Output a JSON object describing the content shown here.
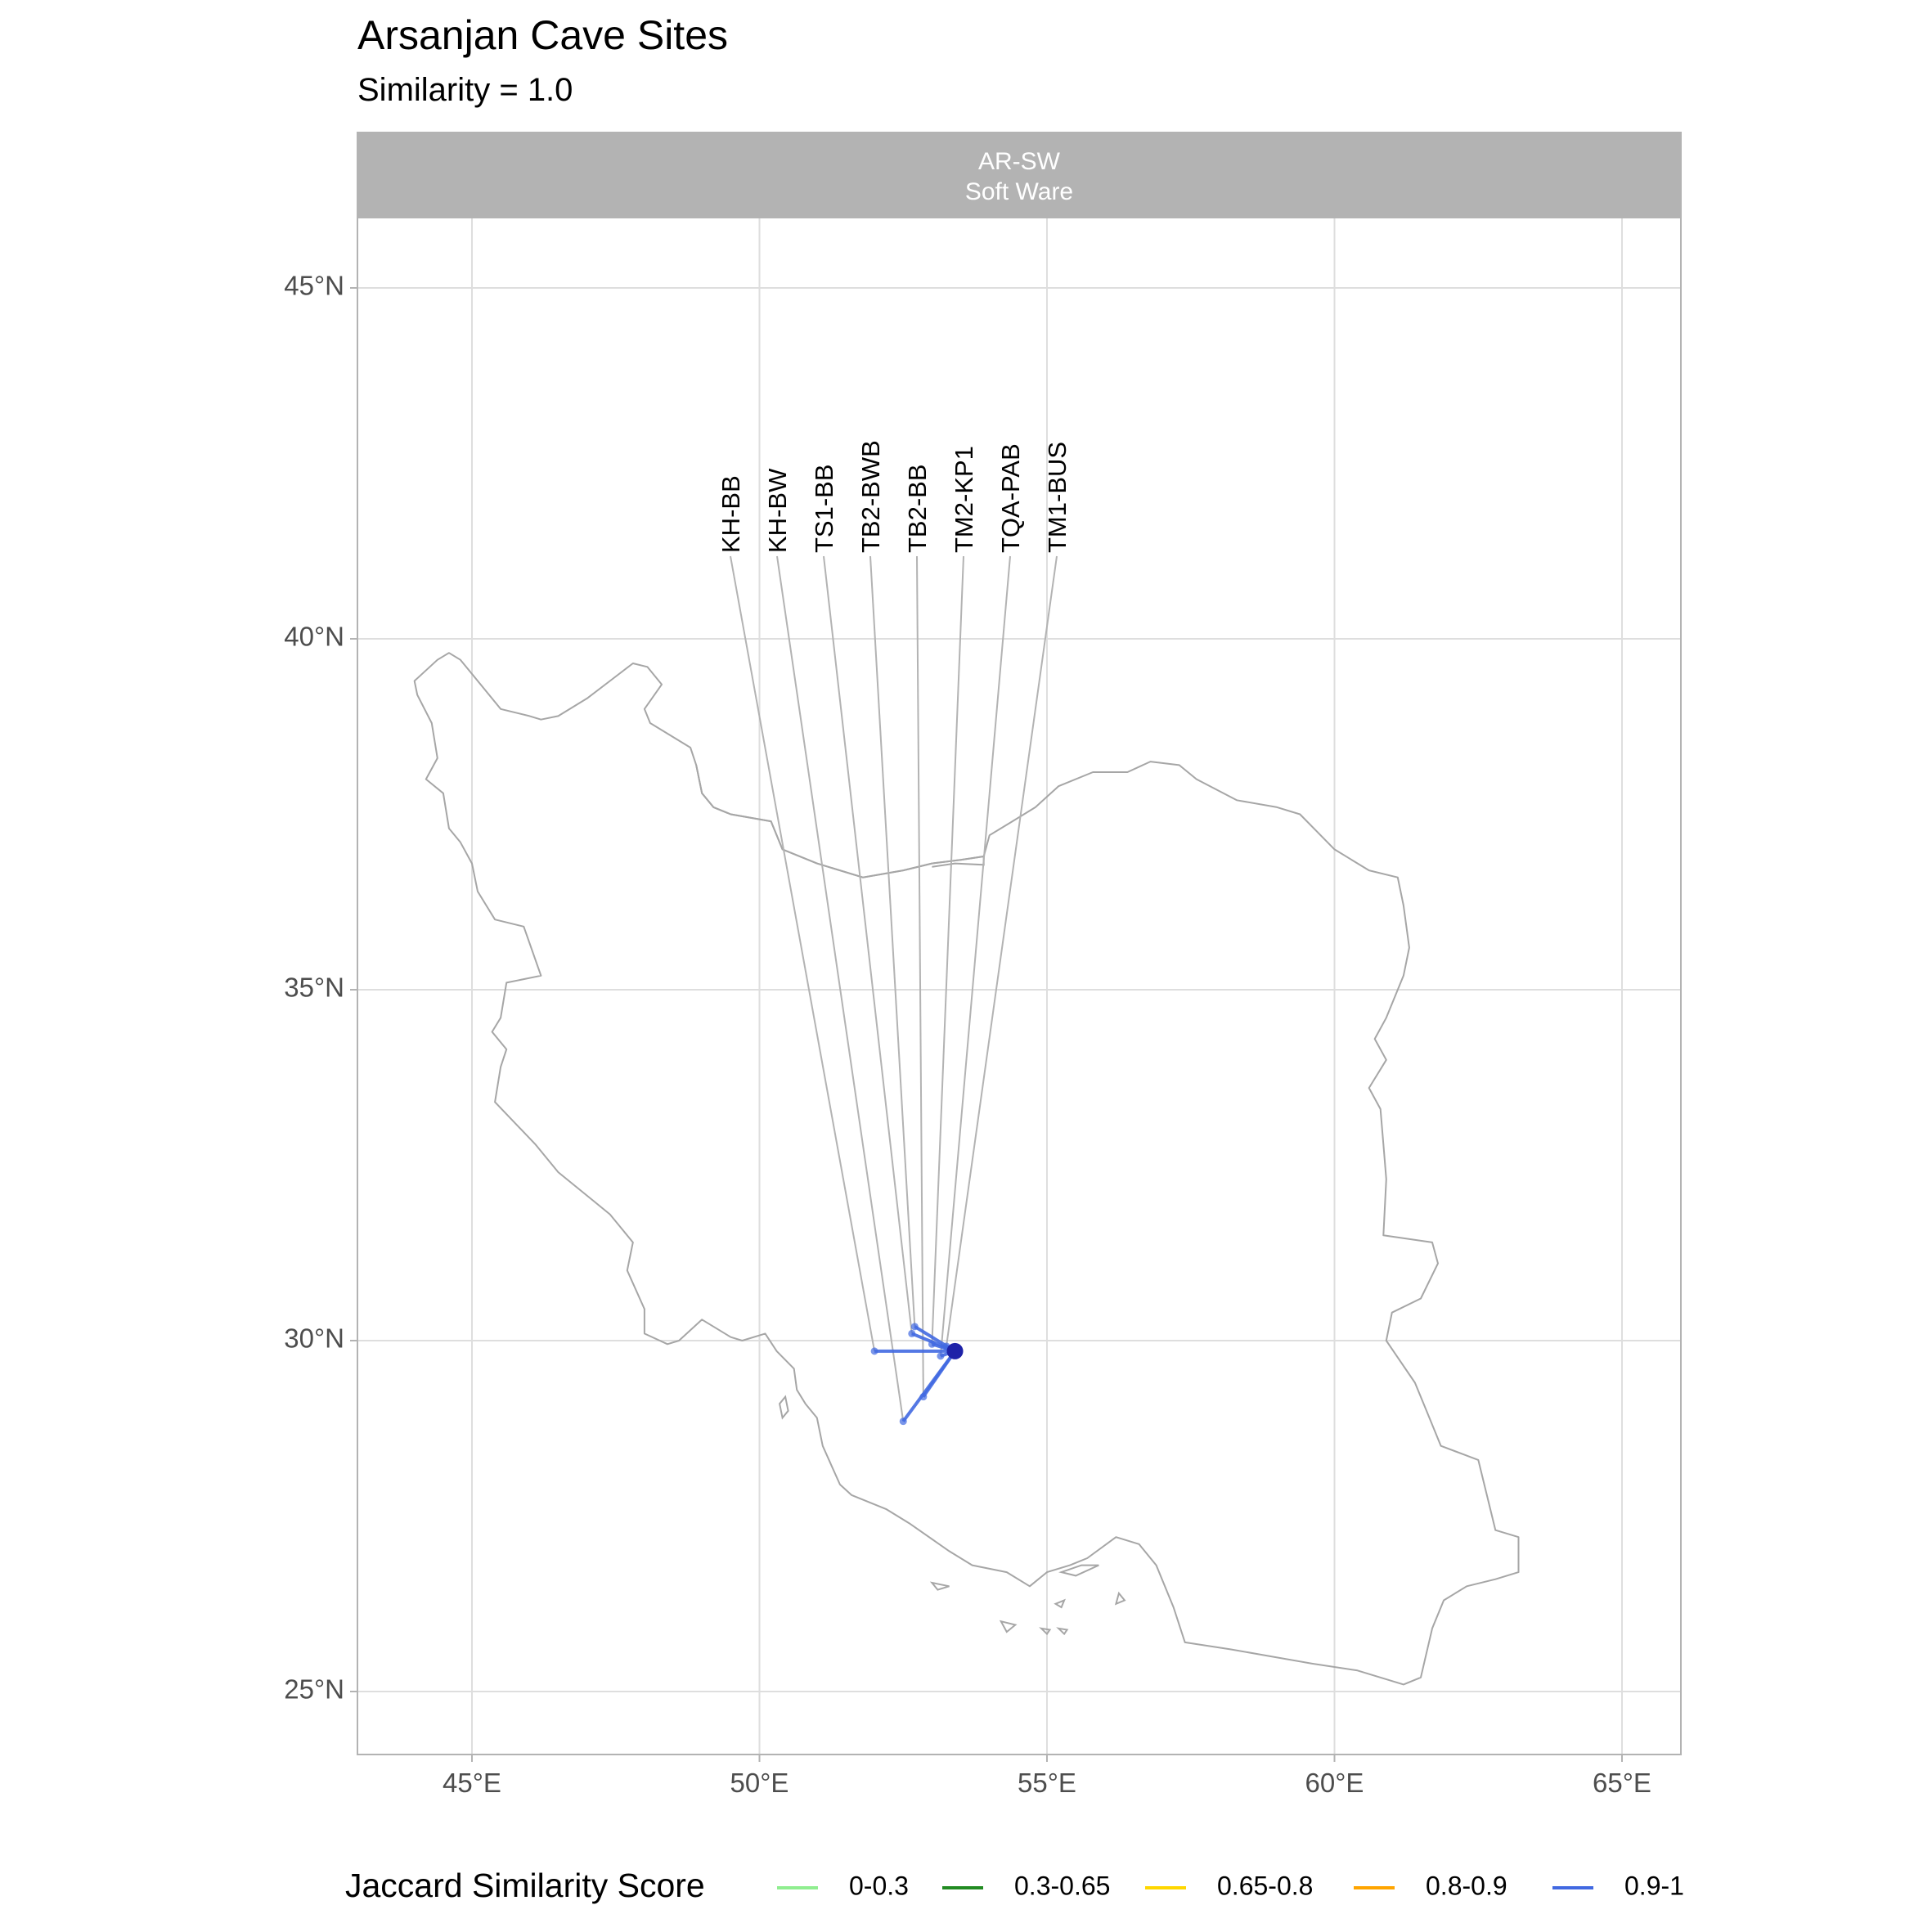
{
  "title": "Arsanjan Cave Sites",
  "subtitle": "Similarity = 1.0",
  "facet": {
    "line1": "AR-SW",
    "line2": "Soft Ware"
  },
  "axes": {
    "x_ticks": [
      "45°E",
      "50°E",
      "55°E",
      "60°E",
      "65°E"
    ],
    "y_ticks": [
      "45°N",
      "40°N",
      "35°N",
      "30°N",
      "25°N"
    ],
    "x_range": [
      43.0,
      66.0
    ],
    "y_range": [
      24.0,
      46.0
    ],
    "grid": true
  },
  "legend": {
    "title": "Jaccard Similarity Score",
    "position": "bottom",
    "items": [
      {
        "label": "0-0.3",
        "color": "#90EE90"
      },
      {
        "label": "0.3-0.65",
        "color": "#228B22"
      },
      {
        "label": "0.65-0.8",
        "color": "#FFD700"
      },
      {
        "label": "0.8-0.9",
        "color": "#FFA500"
      },
      {
        "label": "0.9-1",
        "color": "#4169E1"
      }
    ]
  },
  "colors": {
    "connection": "#4169E1",
    "hub": "#1E22A8",
    "border": "#A6A6A6",
    "grid": "#DEDEDE",
    "strip": "#B3B3B3",
    "leader": "#B3B3B3"
  },
  "chart_data": {
    "type": "map",
    "region": "Iran",
    "hub": {
      "lon": 53.4,
      "lat": 29.85
    },
    "sites": [
      {
        "name": "KH-BB",
        "lon": 52.0,
        "lat": 29.85,
        "similarity_class": "0.9-1"
      },
      {
        "name": "KH-BW",
        "lon": 52.5,
        "lat": 28.85,
        "similarity_class": "0.9-1"
      },
      {
        "name": "TS1-BB",
        "lon": 52.65,
        "lat": 30.1,
        "similarity_class": "0.9-1"
      },
      {
        "name": "TB2-BWB",
        "lon": 52.7,
        "lat": 30.2,
        "similarity_class": "0.9-1"
      },
      {
        "name": "TB2-BB",
        "lon": 52.85,
        "lat": 29.2,
        "similarity_class": "0.9-1"
      },
      {
        "name": "TM2-KP1",
        "lon": 53.0,
        "lat": 29.95,
        "similarity_class": "0.9-1"
      },
      {
        "name": "TQA-PAB",
        "lon": 53.15,
        "lat": 29.78,
        "similarity_class": "0.9-1"
      },
      {
        "name": "TM1-BUS",
        "lon": 53.25,
        "lat": 29.92,
        "similarity_class": "0.9-1"
      }
    ],
    "border_polygon": [
      [
        44.0,
        39.4
      ],
      [
        44.4,
        39.7
      ],
      [
        44.6,
        39.8
      ],
      [
        44.8,
        39.7
      ],
      [
        45.0,
        39.5
      ],
      [
        45.5,
        39.0
      ],
      [
        46.0,
        38.9
      ],
      [
        46.2,
        38.85
      ],
      [
        46.5,
        38.9
      ],
      [
        47.0,
        39.15
      ],
      [
        47.4,
        39.4
      ],
      [
        47.8,
        39.65
      ],
      [
        48.05,
        39.6
      ],
      [
        48.3,
        39.35
      ],
      [
        48.0,
        39.0
      ],
      [
        48.1,
        38.8
      ],
      [
        48.5,
        38.6
      ],
      [
        48.8,
        38.45
      ],
      [
        48.9,
        38.2
      ],
      [
        49.0,
        37.8
      ],
      [
        49.2,
        37.6
      ],
      [
        49.5,
        37.5
      ],
      [
        50.2,
        37.4
      ],
      [
        50.4,
        37.0
      ],
      [
        51.0,
        36.8
      ],
      [
        51.8,
        36.6
      ],
      [
        52.5,
        36.7
      ],
      [
        53.0,
        36.8
      ],
      [
        53.5,
        36.85
      ],
      [
        53.9,
        36.9
      ],
      [
        54.0,
        37.2
      ],
      [
        54.4,
        37.4
      ],
      [
        54.8,
        37.6
      ],
      [
        55.2,
        37.9
      ],
      [
        55.8,
        38.1
      ],
      [
        56.4,
        38.1
      ],
      [
        56.8,
        38.25
      ],
      [
        57.3,
        38.2
      ],
      [
        57.6,
        38.0
      ],
      [
        58.3,
        37.7
      ],
      [
        59.0,
        37.6
      ],
      [
        59.4,
        37.5
      ],
      [
        60.0,
        37.0
      ],
      [
        60.6,
        36.7
      ],
      [
        61.1,
        36.6
      ],
      [
        61.2,
        36.2
      ],
      [
        61.3,
        35.6
      ],
      [
        61.2,
        35.2
      ],
      [
        60.9,
        34.6
      ],
      [
        60.7,
        34.3
      ],
      [
        60.9,
        34.0
      ],
      [
        60.6,
        33.6
      ],
      [
        60.8,
        33.3
      ],
      [
        60.85,
        32.8
      ],
      [
        60.9,
        32.3
      ],
      [
        60.85,
        31.5
      ],
      [
        61.7,
        31.4
      ],
      [
        61.8,
        31.1
      ],
      [
        61.5,
        30.6
      ],
      [
        61.0,
        30.4
      ],
      [
        60.9,
        30.0
      ],
      [
        61.4,
        29.4
      ],
      [
        61.6,
        29.0
      ],
      [
        61.85,
        28.5
      ],
      [
        62.5,
        28.3
      ],
      [
        62.8,
        27.3
      ],
      [
        63.2,
        27.2
      ],
      [
        63.2,
        26.7
      ],
      [
        62.8,
        26.6
      ],
      [
        62.3,
        26.5
      ],
      [
        61.9,
        26.3
      ],
      [
        61.7,
        25.9
      ],
      [
        61.5,
        25.2
      ],
      [
        61.2,
        25.1
      ],
      [
        60.4,
        25.3
      ],
      [
        59.6,
        25.4
      ],
      [
        58.9,
        25.5
      ],
      [
        58.2,
        25.6
      ],
      [
        57.4,
        25.7
      ],
      [
        57.2,
        26.2
      ],
      [
        56.9,
        26.8
      ],
      [
        56.6,
        27.1
      ],
      [
        56.2,
        27.2
      ],
      [
        55.7,
        26.9
      ],
      [
        55.4,
        26.8
      ],
      [
        55.0,
        26.7
      ],
      [
        54.7,
        26.5
      ],
      [
        54.3,
        26.7
      ],
      [
        53.7,
        26.8
      ],
      [
        53.3,
        27.0
      ],
      [
        52.6,
        27.4
      ],
      [
        52.2,
        27.6
      ],
      [
        51.6,
        27.8
      ],
      [
        51.4,
        27.95
      ],
      [
        51.1,
        28.5
      ],
      [
        51.0,
        28.9
      ],
      [
        50.8,
        29.1
      ],
      [
        50.65,
        29.3
      ],
      [
        50.6,
        29.6
      ],
      [
        50.3,
        29.85
      ],
      [
        50.1,
        30.1
      ],
      [
        49.7,
        30.0
      ],
      [
        49.5,
        30.05
      ],
      [
        49.0,
        30.3
      ],
      [
        48.6,
        30.0
      ],
      [
        48.4,
        29.95
      ],
      [
        48.0,
        30.1
      ],
      [
        48.0,
        30.45
      ],
      [
        47.7,
        31.0
      ],
      [
        47.8,
        31.4
      ],
      [
        47.4,
        31.8
      ],
      [
        47.1,
        32.0
      ],
      [
        46.5,
        32.4
      ],
      [
        46.1,
        32.8
      ],
      [
        45.4,
        33.4
      ],
      [
        45.5,
        33.9
      ],
      [
        45.6,
        34.15
      ],
      [
        45.35,
        34.4
      ],
      [
        45.5,
        34.6
      ],
      [
        45.6,
        35.1
      ],
      [
        46.2,
        35.2
      ],
      [
        45.9,
        35.9
      ],
      [
        45.4,
        36.0
      ],
      [
        45.1,
        36.4
      ],
      [
        45.0,
        36.8
      ],
      [
        44.8,
        37.1
      ],
      [
        44.6,
        37.3
      ],
      [
        44.5,
        37.8
      ],
      [
        44.2,
        38.0
      ],
      [
        44.4,
        38.3
      ],
      [
        44.3,
        38.8
      ],
      [
        44.05,
        39.2
      ],
      [
        44.0,
        39.4
      ]
    ],
    "caspian_edge": [
      [
        48.9,
        38.2
      ],
      [
        49.0,
        37.8
      ],
      [
        49.2,
        37.6
      ],
      [
        49.5,
        37.5
      ],
      [
        50.2,
        37.4
      ],
      [
        50.4,
        37.0
      ],
      [
        51.0,
        36.8
      ],
      [
        51.8,
        36.6
      ],
      [
        52.5,
        36.7
      ],
      [
        53.0,
        36.8
      ],
      [
        53.5,
        36.85
      ],
      [
        53.9,
        36.9
      ],
      [
        53.9,
        36.78
      ],
      [
        53.4,
        36.8
      ],
      [
        53.0,
        36.75
      ]
    ],
    "islands": [
      [
        [
          55.25,
          26.7
        ],
        [
          55.6,
          26.8
        ],
        [
          55.9,
          26.8
        ],
        [
          55.5,
          26.65
        ],
        [
          55.25,
          26.7
        ]
      ],
      [
        [
          53.0,
          26.55
        ],
        [
          53.3,
          26.5
        ],
        [
          53.1,
          26.45
        ],
        [
          53.0,
          26.55
        ]
      ],
      [
        [
          56.25,
          26.4
        ],
        [
          56.35,
          26.3
        ],
        [
          56.2,
          26.25
        ],
        [
          56.25,
          26.4
        ]
      ],
      [
        [
          54.2,
          26.0
        ],
        [
          54.45,
          25.95
        ],
        [
          54.3,
          25.85
        ],
        [
          54.2,
          26.0
        ]
      ],
      [
        [
          55.15,
          26.25
        ],
        [
          55.3,
          26.3
        ],
        [
          55.25,
          26.2
        ],
        [
          55.15,
          26.25
        ]
      ],
      [
        [
          50.4,
          28.9
        ],
        [
          50.5,
          29.0
        ],
        [
          50.45,
          29.2
        ],
        [
          50.35,
          29.1
        ],
        [
          50.4,
          28.9
        ]
      ],
      [
        [
          54.9,
          25.9
        ],
        [
          55.05,
          25.88
        ],
        [
          55.0,
          25.82
        ],
        [
          54.9,
          25.9
        ]
      ],
      [
        [
          55.2,
          25.9
        ],
        [
          55.35,
          25.88
        ],
        [
          55.3,
          25.82
        ],
        [
          55.2,
          25.9
        ]
      ]
    ]
  }
}
